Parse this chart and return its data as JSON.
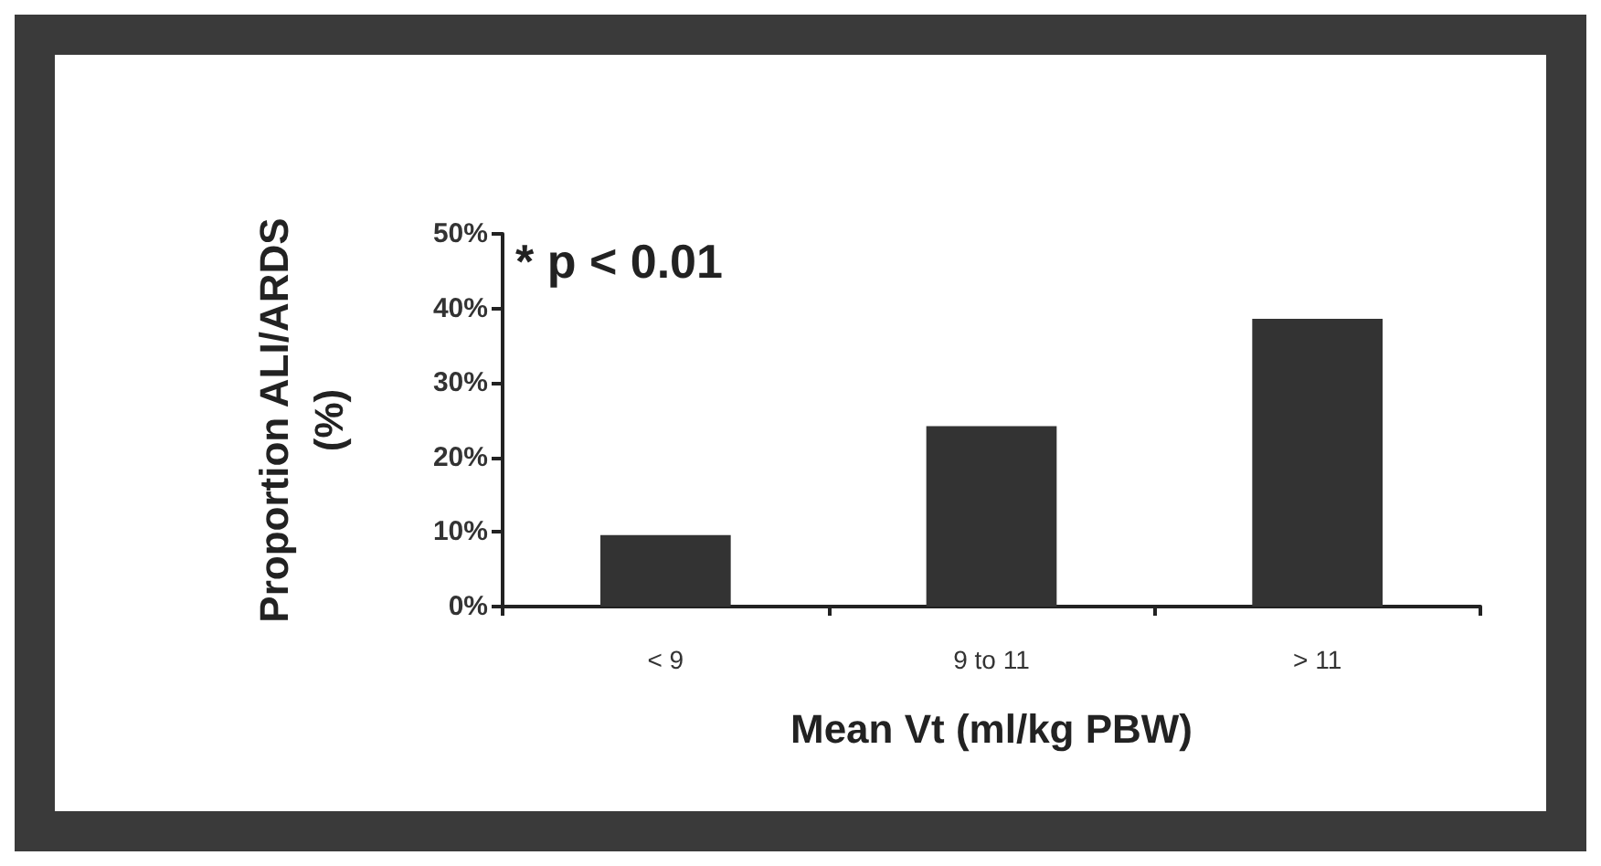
{
  "chart_data": {
    "type": "bar",
    "xlabel": "Mean Vt (ml/kg PBW)",
    "ylabel": "Proportion ALI/ARDS\n(%)",
    "categories": [
      "< 9",
      "9 to 11",
      "> 11"
    ],
    "values": [
      9.6,
      24.2,
      38.6
    ],
    "color": "#333333",
    "ylim": [
      0,
      50
    ],
    "yticks": [
      {
        "value": 0,
        "label": "0%"
      },
      {
        "value": 10,
        "label": "10%"
      },
      {
        "value": 20,
        "label": "20%"
      },
      {
        "value": 30,
        "label": "30%"
      },
      {
        "value": 40,
        "label": "40%"
      },
      {
        "value": 50,
        "label": "50%"
      }
    ],
    "grid": false,
    "annotations": [
      "* p < 0.01"
    ]
  }
}
